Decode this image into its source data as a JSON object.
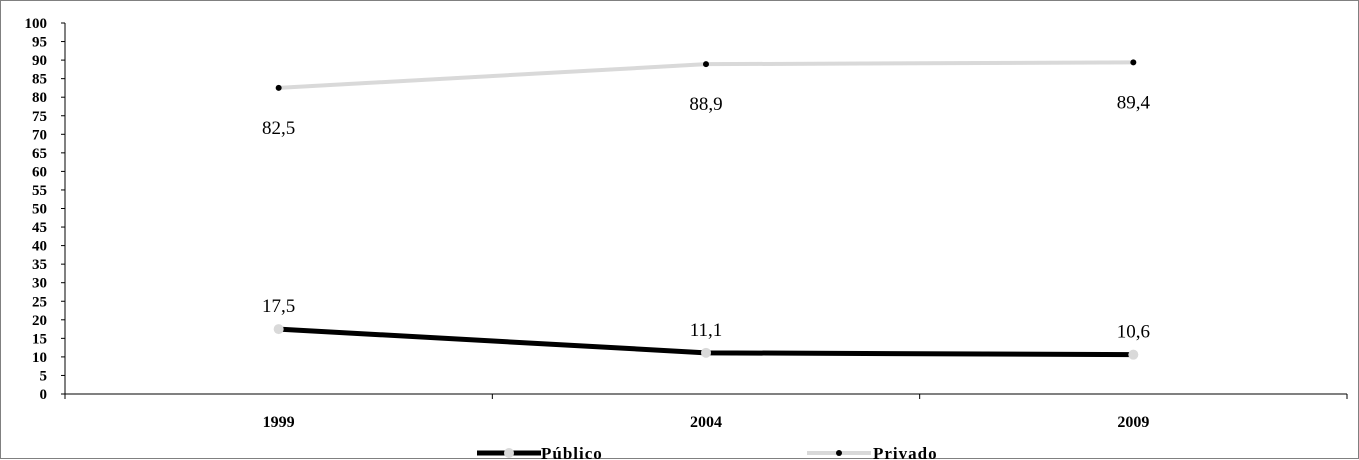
{
  "chart_data": {
    "type": "line",
    "categories": [
      "1999",
      "2004",
      "2009"
    ],
    "series": [
      {
        "name": "Público",
        "values": [
          17.5,
          11.1,
          10.6
        ],
        "labels": [
          "17,5",
          "11,1",
          "10,6"
        ],
        "line_color": "#000000",
        "marker_color": "#d9d9d9"
      },
      {
        "name": "Privado",
        "values": [
          82.5,
          88.9,
          89.4
        ],
        "labels": [
          "82,5",
          "88,9",
          "89,4"
        ],
        "line_color": "#d9d9d9",
        "marker_color": "#000000"
      }
    ],
    "ylim": [
      0,
      100
    ],
    "yticks": [
      0,
      5,
      10,
      15,
      20,
      25,
      30,
      35,
      40,
      45,
      50,
      55,
      60,
      65,
      70,
      75,
      80,
      85,
      90,
      95,
      100
    ],
    "grid": false,
    "legend_position": "bottom"
  }
}
